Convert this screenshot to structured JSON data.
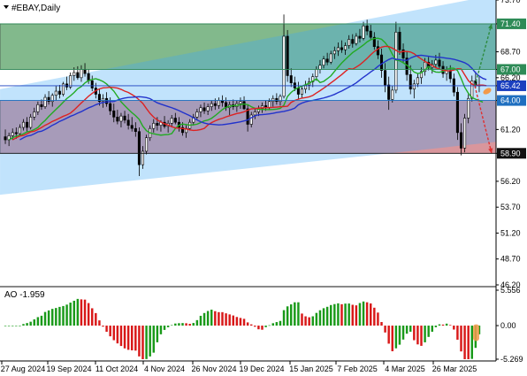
{
  "window": {
    "symbol_title": "#EBAY,Daily"
  },
  "chart_data": {
    "type": "candlestick",
    "ylim": [
      46.2,
      73.7
    ],
    "yticks": [
      "73.70",
      "71.40",
      "68.70",
      "67.00",
      "66.20",
      "65.42",
      "64.00",
      "61.20",
      "58.90",
      "56.20",
      "53.70",
      "51.20",
      "48.70",
      "46.20"
    ],
    "price_levels": [
      {
        "name": "tp-buy",
        "value": 71.4,
        "label": "71.40",
        "color": "#2e8b57"
      },
      {
        "name": "entry-up",
        "value": 67.0,
        "label": "67.00",
        "color": "#2e8b57"
      },
      {
        "name": "current",
        "value": 65.42,
        "label": "65.42",
        "color": "#1a3fbf"
      },
      {
        "name": "entry-down",
        "value": 64.0,
        "label": "64.00",
        "color": "#1f6fc0"
      },
      {
        "name": "tp-sell",
        "value": 58.9,
        "label": "58.90",
        "color": "#111111"
      }
    ],
    "zones": [
      {
        "name": "buy-zone",
        "from": 67.0,
        "to": 71.4,
        "color": "#2e8b3f"
      },
      {
        "name": "sell-zone",
        "from": 58.9,
        "to": 64.0,
        "color": "#c0505a"
      }
    ],
    "x_labels": [
      "27 Aug 2024",
      "19 Sep 2024",
      "11 Oct 2024",
      "4 Nov 2024",
      "26 Nov 2024",
      "19 Dec 2024",
      "15 Jan 2025",
      "7 Feb 2025",
      "4 Mar 2025",
      "26 Mar 2025"
    ],
    "candles": [
      [
        60.5,
        61.2,
        59.8,
        60.2
      ],
      [
        60.2,
        60.9,
        59.6,
        60.6
      ],
      [
        60.6,
        61.3,
        60.2,
        60.9
      ],
      [
        60.9,
        61.4,
        60.3,
        60.8
      ],
      [
        60.8,
        61.7,
        60.6,
        61.4
      ],
      [
        61.4,
        62.2,
        61.1,
        61.9
      ],
      [
        61.9,
        62.4,
        61.0,
        61.4
      ],
      [
        61.4,
        62.7,
        61.2,
        62.4
      ],
      [
        62.4,
        63.3,
        62.1,
        62.9
      ],
      [
        62.9,
        63.9,
        62.6,
        63.6
      ],
      [
        63.6,
        64.1,
        63.1,
        63.4
      ],
      [
        63.4,
        64.6,
        63.2,
        64.3
      ],
      [
        64.3,
        64.9,
        63.6,
        63.9
      ],
      [
        63.9,
        64.7,
        63.4,
        64.5
      ],
      [
        64.5,
        65.4,
        64.0,
        64.9
      ],
      [
        64.9,
        65.5,
        64.2,
        64.6
      ],
      [
        64.6,
        65.8,
        64.4,
        65.6
      ],
      [
        65.6,
        66.3,
        65.0,
        65.3
      ],
      [
        65.3,
        66.7,
        65.1,
        66.4
      ],
      [
        66.4,
        67.2,
        65.9,
        66.7
      ],
      [
        66.7,
        67.3,
        66.0,
        66.2
      ],
      [
        66.2,
        67.4,
        65.8,
        67.0
      ],
      [
        67.0,
        67.6,
        66.3,
        66.6
      ],
      [
        66.6,
        67.0,
        65.6,
        65.9
      ],
      [
        65.9,
        66.4,
        64.9,
        65.2
      ],
      [
        65.2,
        65.7,
        64.2,
        64.6
      ],
      [
        64.6,
        65.1,
        63.5,
        63.9
      ],
      [
        63.9,
        64.6,
        63.3,
        64.2
      ],
      [
        64.2,
        64.8,
        63.4,
        63.7
      ],
      [
        63.7,
        64.3,
        62.6,
        63.0
      ],
      [
        63.0,
        63.7,
        61.9,
        62.4
      ],
      [
        62.4,
        63.1,
        61.7,
        62.0
      ],
      [
        62.0,
        62.8,
        61.4,
        62.5
      ],
      [
        62.5,
        63.0,
        61.8,
        62.1
      ],
      [
        62.1,
        62.7,
        61.2,
        61.6
      ],
      [
        61.6,
        62.4,
        61.0,
        61.3
      ],
      [
        61.3,
        61.9,
        60.5,
        61.0
      ],
      [
        61.0,
        61.4,
        56.7,
        57.8
      ],
      [
        57.8,
        59.6,
        57.4,
        59.1
      ],
      [
        59.1,
        60.7,
        58.8,
        60.4
      ],
      [
        60.4,
        61.6,
        60.1,
        61.3
      ],
      [
        61.3,
        62.2,
        60.9,
        61.8
      ],
      [
        61.8,
        62.4,
        61.1,
        61.6
      ],
      [
        61.6,
        62.1,
        61.0,
        61.9
      ],
      [
        61.9,
        62.5,
        61.3,
        61.5
      ],
      [
        61.5,
        62.1,
        60.9,
        61.8
      ],
      [
        61.8,
        62.6,
        61.4,
        62.3
      ],
      [
        62.3,
        62.8,
        61.7,
        61.9
      ],
      [
        61.9,
        62.4,
        61.0,
        61.4
      ],
      [
        61.4,
        61.9,
        60.6,
        60.9
      ],
      [
        60.9,
        61.6,
        60.4,
        61.3
      ],
      [
        61.3,
        62.2,
        61.1,
        61.9
      ],
      [
        61.9,
        62.7,
        61.6,
        62.4
      ],
      [
        62.4,
        63.2,
        62.1,
        62.9
      ],
      [
        62.9,
        63.6,
        62.4,
        63.3
      ],
      [
        63.3,
        63.8,
        62.7,
        63.0
      ],
      [
        63.0,
        63.7,
        62.6,
        63.4
      ],
      [
        63.4,
        64.0,
        63.0,
        63.7
      ],
      [
        63.7,
        64.2,
        63.1,
        63.5
      ],
      [
        63.5,
        64.3,
        63.2,
        64.0
      ],
      [
        64.0,
        64.5,
        63.4,
        63.8
      ],
      [
        63.8,
        64.3,
        63.0,
        63.3
      ],
      [
        63.3,
        63.9,
        62.6,
        63.6
      ],
      [
        63.6,
        64.1,
        63.1,
        63.4
      ],
      [
        63.4,
        64.0,
        62.9,
        63.7
      ],
      [
        63.7,
        64.3,
        63.2,
        63.9
      ],
      [
        63.9,
        64.4,
        63.1,
        63.2
      ],
      [
        63.2,
        63.6,
        61.0,
        61.7
      ],
      [
        61.7,
        62.9,
        61.4,
        62.6
      ],
      [
        62.6,
        63.3,
        62.2,
        62.9
      ],
      [
        62.9,
        63.5,
        62.5,
        63.2
      ],
      [
        63.2,
        63.8,
        62.8,
        63.5
      ],
      [
        63.5,
        64.0,
        63.0,
        63.3
      ],
      [
        63.3,
        64.2,
        63.1,
        63.9
      ],
      [
        63.9,
        64.5,
        63.4,
        64.2
      ],
      [
        64.2,
        64.7,
        63.6,
        63.9
      ],
      [
        63.9,
        64.6,
        63.5,
        64.4
      ],
      [
        64.4,
        72.3,
        64.2,
        70.2
      ],
      [
        70.2,
        70.8,
        65.8,
        66.4
      ],
      [
        66.4,
        67.1,
        65.3,
        65.7
      ],
      [
        65.7,
        66.3,
        64.9,
        65.2
      ],
      [
        65.2,
        65.8,
        64.1,
        64.6
      ],
      [
        64.6,
        65.4,
        64.2,
        65.1
      ],
      [
        65.1,
        65.9,
        64.7,
        65.5
      ],
      [
        65.5,
        66.2,
        65.0,
        65.8
      ],
      [
        65.8,
        66.6,
        65.3,
        66.3
      ],
      [
        66.3,
        67.3,
        65.9,
        67.0
      ],
      [
        67.0,
        67.9,
        66.6,
        67.4
      ],
      [
        67.4,
        68.3,
        67.1,
        68.0
      ],
      [
        68.0,
        68.6,
        67.4,
        67.7
      ],
      [
        67.7,
        68.8,
        67.5,
        68.5
      ],
      [
        68.5,
        69.2,
        68.0,
        68.8
      ],
      [
        68.8,
        69.6,
        68.3,
        69.1
      ],
      [
        69.1,
        69.8,
        68.6,
        68.9
      ],
      [
        68.9,
        69.6,
        68.4,
        69.3
      ],
      [
        69.3,
        70.3,
        69.0,
        69.9
      ],
      [
        69.9,
        70.4,
        69.1,
        69.5
      ],
      [
        69.5,
        70.5,
        69.3,
        70.2
      ],
      [
        70.2,
        70.9,
        69.6,
        70.0
      ],
      [
        70.0,
        71.6,
        69.8,
        71.2
      ],
      [
        71.2,
        71.8,
        70.3,
        70.7
      ],
      [
        70.7,
        71.3,
        69.8,
        70.1
      ],
      [
        70.1,
        70.6,
        68.9,
        69.2
      ],
      [
        69.2,
        69.8,
        68.0,
        68.4
      ],
      [
        68.4,
        69.0,
        66.2,
        66.9
      ],
      [
        66.9,
        67.6,
        64.8,
        65.5
      ],
      [
        65.5,
        66.3,
        63.1,
        64.1
      ],
      [
        64.1,
        65.4,
        63.8,
        65.0
      ],
      [
        65.0,
        71.6,
        64.7,
        70.6
      ],
      [
        70.6,
        71.1,
        68.4,
        68.9
      ],
      [
        68.9,
        69.5,
        67.6,
        68.1
      ],
      [
        68.1,
        68.7,
        65.9,
        66.5
      ],
      [
        66.5,
        67.4,
        64.6,
        65.1
      ],
      [
        65.1,
        66.0,
        64.2,
        65.6
      ],
      [
        65.6,
        66.6,
        65.3,
        66.2
      ],
      [
        66.2,
        67.2,
        65.6,
        66.8
      ],
      [
        66.8,
        68.1,
        66.4,
        67.7
      ],
      [
        67.7,
        68.2,
        66.9,
        67.2
      ],
      [
        67.2,
        67.9,
        66.6,
        67.5
      ],
      [
        67.5,
        68.4,
        67.1,
        67.9
      ],
      [
        67.9,
        68.6,
        67.0,
        67.3
      ],
      [
        67.3,
        67.8,
        66.2,
        66.6
      ],
      [
        66.6,
        67.3,
        65.9,
        66.9
      ],
      [
        66.9,
        67.4,
        65.7,
        66.1
      ],
      [
        66.1,
        66.6,
        64.4,
        64.8
      ],
      [
        64.8,
        65.3,
        60.2,
        60.9
      ],
      [
        60.9,
        61.8,
        58.7,
        59.4
      ],
      [
        59.4,
        62.7,
        59.0,
        62.3
      ],
      [
        62.3,
        64.6,
        61.8,
        64.2
      ],
      [
        64.2,
        66.4,
        63.9,
        65.9
      ],
      [
        65.9,
        66.8,
        65.2,
        65.5
      ],
      [
        65.5,
        66.3,
        64.8,
        65.4
      ]
    ],
    "bands": [
      {
        "name": "channel-upper",
        "from": [
          0,
          65.1
        ],
        "to": [
          139,
          74.2
        ]
      },
      {
        "name": "channel-lower",
        "from": [
          0,
          54.9
        ],
        "to": [
          139,
          60.0
        ]
      }
    ],
    "series": [
      {
        "name": "ma-green",
        "color": "#22aa22",
        "lag": 4
      },
      {
        "name": "ma-red",
        "color": "#dd2222",
        "lag": 8
      },
      {
        "name": "ma-blue",
        "color": "#2233cc",
        "lag": 13
      }
    ],
    "forecast": [
      {
        "name": "up-arrow",
        "from": [
          65.4
        ],
        "to": [
          71.4
        ],
        "color": "#2e8b3f"
      },
      {
        "name": "down-arrow",
        "from": [
          65.4
        ],
        "to": [
          58.9
        ],
        "color": "#e03030"
      }
    ]
  },
  "indicator": {
    "label": "AO -1.959",
    "ylim": [
      -5.269,
      5.556
    ],
    "yticks": [
      "5.556",
      "0.00",
      "-5.269"
    ]
  }
}
